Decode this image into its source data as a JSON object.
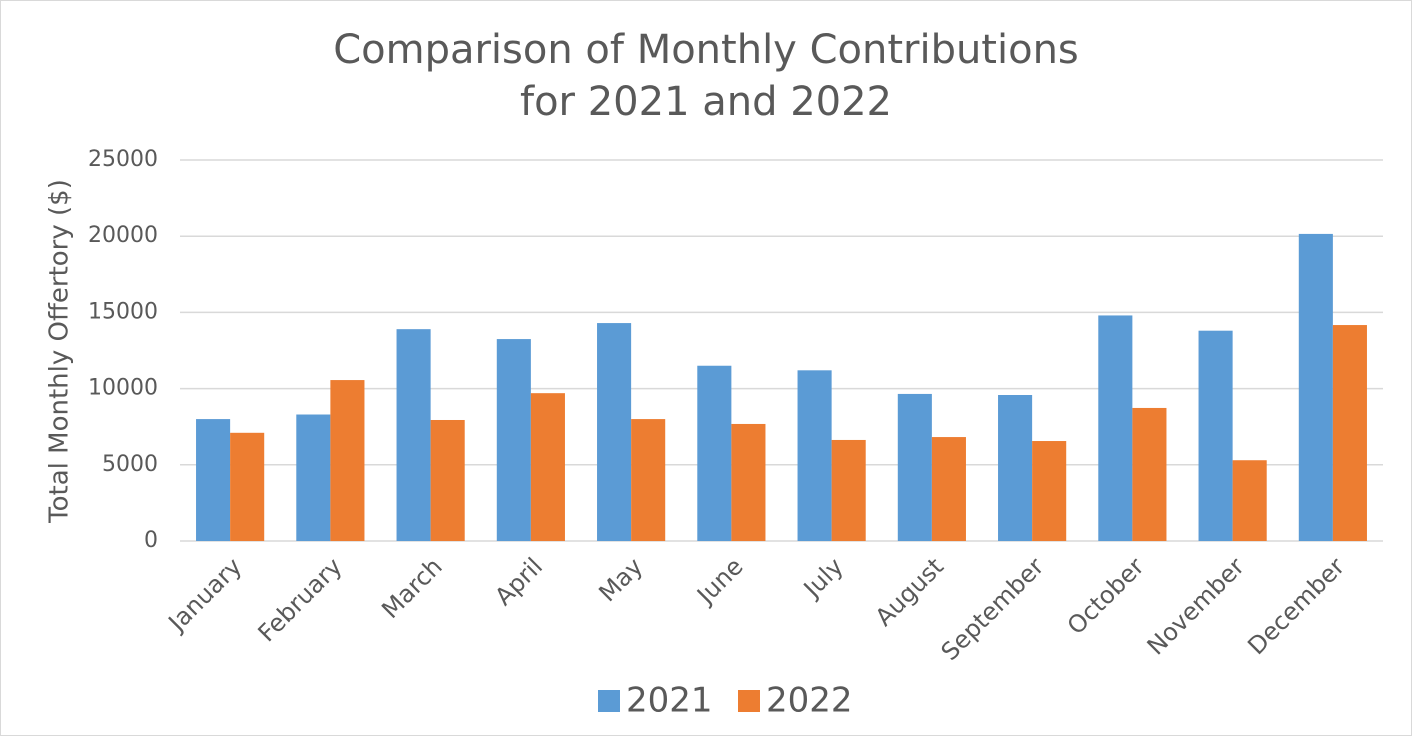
{
  "chart_data": {
    "type": "bar",
    "title": [
      "Comparison of Monthly Contributions",
      "for 2021 and 2022"
    ],
    "y_label": "Total Monthly Offertory ($)",
    "categories": [
      "January",
      "February",
      "March",
      "April",
      "May",
      "June",
      "July",
      "August",
      "September",
      "October",
      "November",
      "December"
    ],
    "series": [
      {
        "name": "2021",
        "color": "#5b9bd5",
        "values": [
          8000,
          8300,
          13900,
          13250,
          14300,
          11500,
          11200,
          9650,
          9580,
          14800,
          13800,
          20150
        ]
      },
      {
        "name": "2022",
        "color": "#ed7d31",
        "values": [
          7100,
          10560,
          7940,
          9700,
          8000,
          7680,
          6630,
          6820,
          6560,
          8730,
          5300,
          14170
        ]
      }
    ],
    "ylim": [
      0,
      25000
    ],
    "yticks": [
      0,
      5000,
      10000,
      15000,
      20000,
      25000
    ],
    "grid": true,
    "legend": "bottom"
  }
}
